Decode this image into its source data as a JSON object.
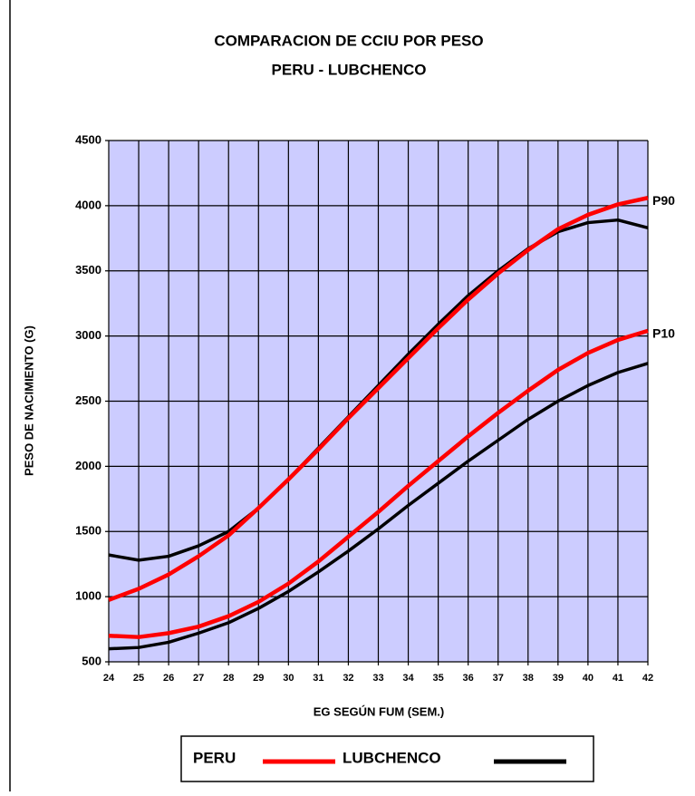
{
  "chart_data": {
    "type": "line",
    "title": "COMPARACION DE CCIU POR PESO",
    "subtitle": "PERU - LUBCHENCO",
    "x_label": "EG SEGÚN FUM (SEM.)",
    "y_label": "PESO DE NACIMIENTO (G)",
    "x": [
      24,
      25,
      26,
      27,
      28,
      29,
      30,
      31,
      32,
      33,
      34,
      35,
      36,
      37,
      38,
      39,
      40,
      41,
      42
    ],
    "xlim": [
      24,
      42
    ],
    "xticks": [
      24,
      25,
      26,
      27,
      28,
      29,
      30,
      31,
      32,
      33,
      34,
      35,
      36,
      37,
      38,
      39,
      40,
      41,
      42
    ],
    "ylim": [
      500,
      4500
    ],
    "yticks": [
      500,
      1000,
      1500,
      2000,
      2500,
      3000,
      3500,
      4000,
      4500
    ],
    "grid": true,
    "annotations": [
      "P90",
      "P10"
    ],
    "series": [
      {
        "name": "PERU",
        "color": "#ff0000",
        "p90": [
          975,
          1060,
          1170,
          1310,
          1470,
          1680,
          1900,
          2130,
          2370,
          2600,
          2830,
          3060,
          3280,
          3480,
          3660,
          3820,
          3930,
          4010,
          4060
        ],
        "p10": [
          700,
          690,
          720,
          770,
          850,
          960,
          1100,
          1270,
          1460,
          1650,
          1850,
          2040,
          2230,
          2410,
          2580,
          2740,
          2870,
          2970,
          3040
        ]
      },
      {
        "name": "LUBCHENCO",
        "color": "#000000",
        "p90": [
          1320,
          1280,
          1310,
          1390,
          1500,
          1680,
          1900,
          2140,
          2380,
          2620,
          2860,
          3090,
          3310,
          3500,
          3670,
          3800,
          3870,
          3890,
          3830
        ],
        "p10": [
          600,
          610,
          650,
          720,
          800,
          910,
          1040,
          1190,
          1350,
          1520,
          1700,
          1870,
          2040,
          2200,
          2360,
          2500,
          2620,
          2720,
          2790
        ]
      }
    ]
  }
}
